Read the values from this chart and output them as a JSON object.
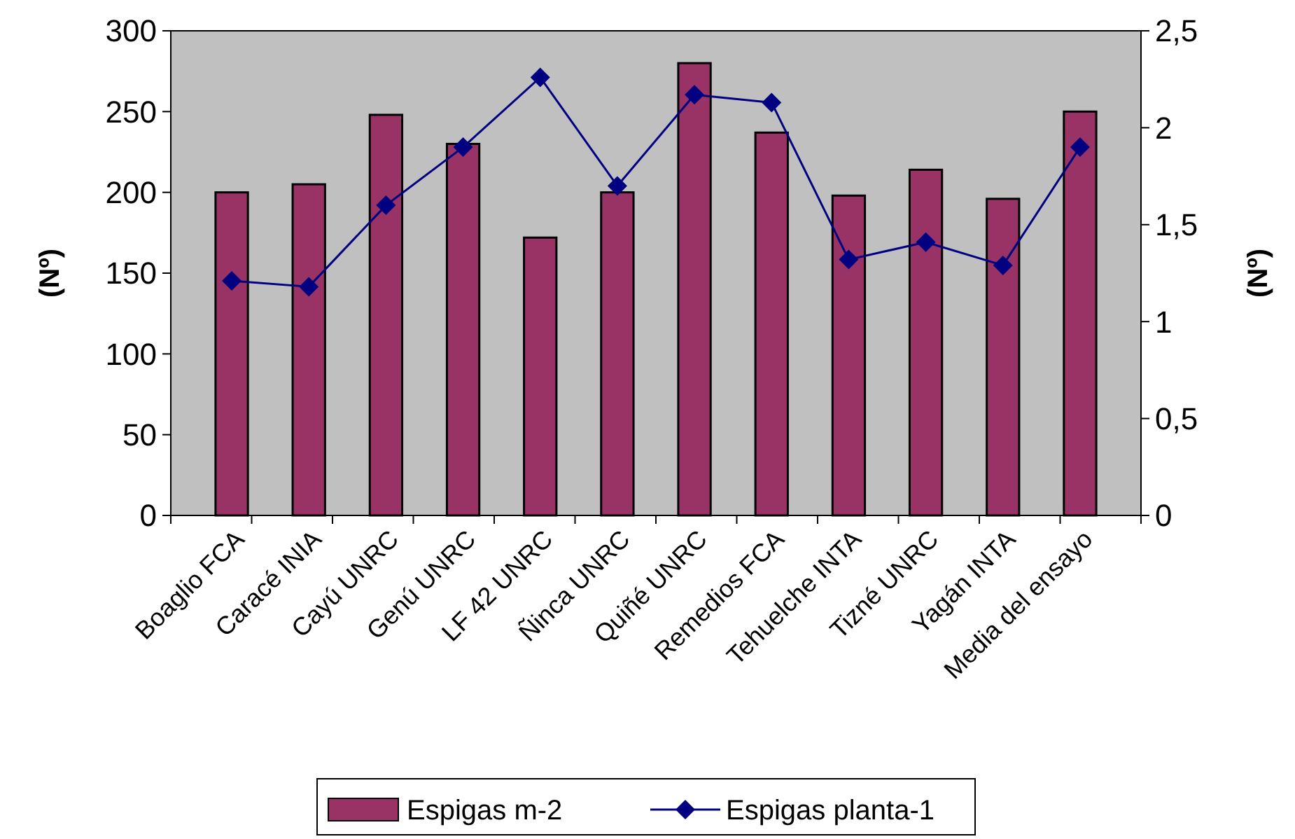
{
  "chart_data": {
    "type": "bar",
    "categories": [
      "Boaglio FCA",
      "Caracé INIA",
      "Cayú UNRC",
      "Genú UNRC",
      "LF 42 UNRC",
      "Ñinca UNRC",
      "Quiñé UNRC",
      "Remedios FCA",
      "Tehuelche INTA",
      "Tizné UNRC",
      "Yagán INTA",
      "Media del ensayo"
    ],
    "series": [
      {
        "name": "Espigas m-2",
        "color": "#993366",
        "values": [
          200,
          205,
          248,
          230,
          172,
          200,
          280,
          237,
          198,
          214,
          196,
          250
        ]
      },
      {
        "name": "Espigas planta-1",
        "color": "#000080",
        "type": "line",
        "axis": "y2",
        "marker": "diamond",
        "values": [
          1.21,
          1.18,
          1.6,
          1.9,
          2.26,
          1.7,
          2.17,
          2.13,
          1.32,
          1.41,
          1.29,
          1.9
        ]
      }
    ],
    "ylabel": "(Nº)",
    "y2label": "(Nº)",
    "ylim": [
      0,
      300
    ],
    "yticks": [
      0,
      50,
      100,
      150,
      200,
      250,
      300
    ],
    "y2lim": [
      0,
      2.5
    ],
    "y2ticks": [
      0,
      {
        "value": 0.5,
        "label": "0,5"
      },
      1,
      {
        "value": 1.5,
        "label": "1,5"
      },
      2,
      {
        "value": 2.5,
        "label": "2,5"
      }
    ],
    "grid": false,
    "legend": "bottom"
  }
}
